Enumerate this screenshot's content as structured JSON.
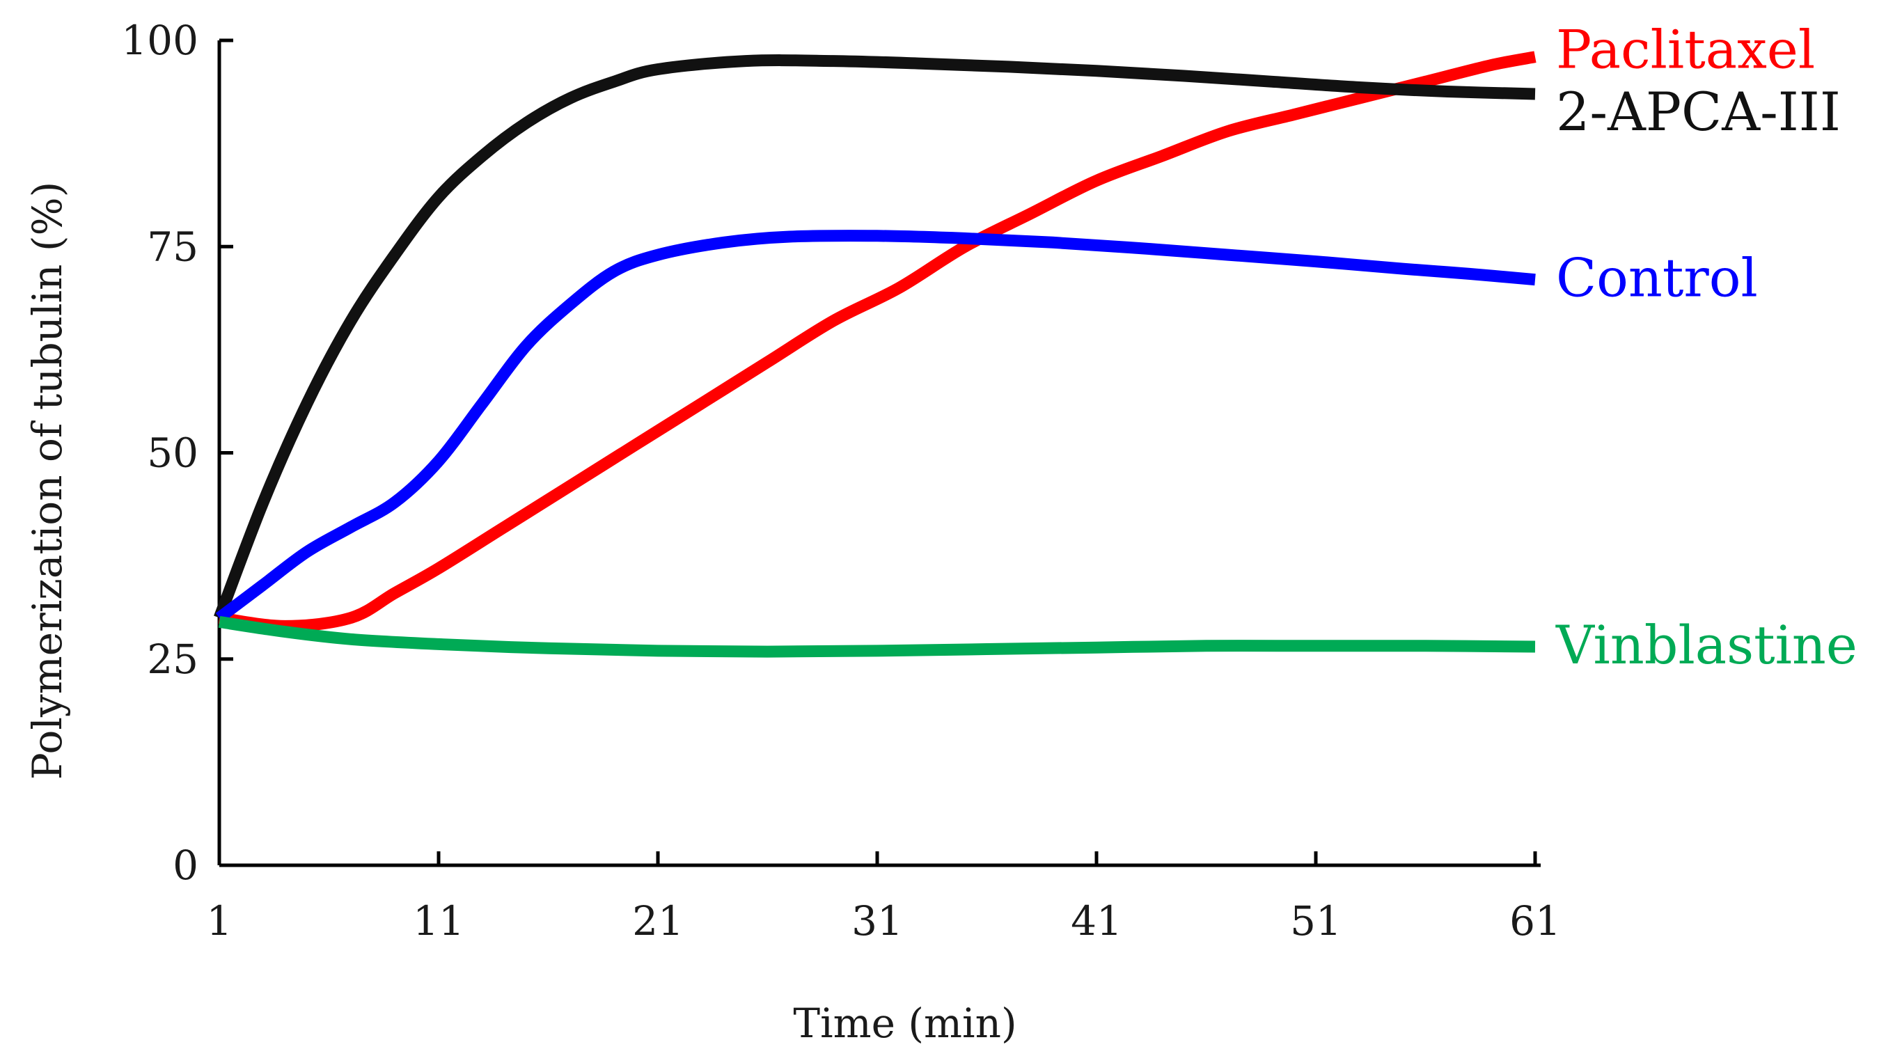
{
  "chart_data": {
    "type": "line",
    "title": "",
    "xlabel": "Time (min)",
    "ylabel": "Polymerization of tubulin (%)",
    "xlim": [
      1,
      61
    ],
    "ylim": [
      0,
      100
    ],
    "x_ticks": [
      "1",
      "11",
      "21",
      "31",
      "41",
      "51",
      "61"
    ],
    "y_ticks": [
      "0",
      "25",
      "50",
      "75",
      "100"
    ],
    "grid": false,
    "legend": "inline labels at the right end of each line",
    "series": [
      {
        "name": "Paclitaxel",
        "color": "#ff0000",
        "x": [
          1,
          4,
          7,
          9,
          11,
          14,
          17,
          20,
          23,
          26,
          29,
          32,
          35,
          38,
          41,
          44,
          47,
          50,
          53,
          56,
          59,
          61
        ],
        "y": [
          30,
          29,
          30,
          33,
          36,
          41,
          46,
          51,
          56,
          61,
          66,
          70,
          75,
          79,
          83,
          86,
          89,
          91,
          93,
          95,
          97,
          98
        ]
      },
      {
        "name": "2-APCA-III",
        "color": "#111111",
        "x": [
          1,
          3,
          5,
          7,
          9,
          11,
          13,
          15,
          17,
          19,
          21,
          25,
          29,
          33,
          37,
          41,
          45,
          49,
          53,
          57,
          61
        ],
        "y": [
          30,
          44,
          56,
          66,
          74,
          81,
          86,
          90,
          93,
          95,
          96.5,
          97.5,
          97.5,
          97.2,
          96.8,
          96.3,
          95.7,
          95,
          94.3,
          93.8,
          93.5
        ]
      },
      {
        "name": "Control",
        "color": "#0000ff",
        "x": [
          1,
          3,
          5,
          7,
          9,
          11,
          13,
          15,
          17,
          19,
          21,
          24,
          27,
          31,
          35,
          39,
          43,
          47,
          51,
          55,
          58,
          61
        ],
        "y": [
          30,
          34,
          38,
          41,
          44,
          49,
          56,
          63,
          68,
          72,
          74,
          75.5,
          76.2,
          76.3,
          76,
          75.5,
          74.8,
          74,
          73.2,
          72.3,
          71.7,
          71
        ]
      },
      {
        "name": "Vinblastine",
        "color": "#00aa55",
        "x": [
          1,
          4,
          7,
          11,
          16,
          21,
          26,
          31,
          36,
          41,
          46,
          51,
          56,
          61
        ],
        "y": [
          29.5,
          28.3,
          27.4,
          26.8,
          26.3,
          26,
          25.9,
          26,
          26.2,
          26.4,
          26.6,
          26.6,
          26.6,
          26.5
        ]
      }
    ]
  }
}
